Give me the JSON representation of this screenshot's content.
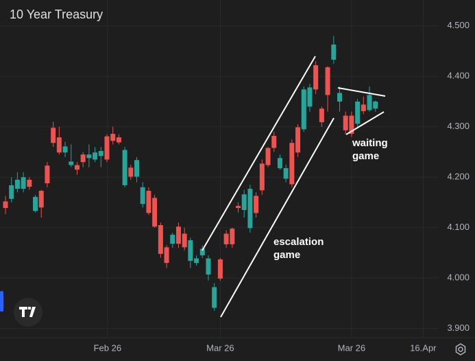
{
  "chart_data": {
    "type": "candlestick",
    "title": "10 Year Treasury",
    "up_color": "#26a69a",
    "down_color": "#ef5350",
    "grid": true,
    "ylim": [
      3.89,
      4.55
    ],
    "yticks": [
      {
        "value": 3.9,
        "label": "3.900"
      },
      {
        "value": 4.0,
        "label": "4.000"
      },
      {
        "value": 4.1,
        "label": "4.100"
      },
      {
        "value": 4.2,
        "label": "4.200"
      },
      {
        "value": 4.3,
        "label": "4.300"
      },
      {
        "value": 4.4,
        "label": "4.400"
      },
      {
        "value": 4.5,
        "label": "4.500"
      }
    ],
    "xlim": [
      -0.92,
      72.6
    ],
    "xticks": [
      {
        "value": 17.1,
        "label": "Feb 26"
      },
      {
        "value": 36,
        "label": "Mar 26"
      },
      {
        "value": 58,
        "label": "Mar 26"
      },
      {
        "value": 70,
        "label": "16.Apr"
      }
    ],
    "open": [
      4.152,
      4.157,
      4.177,
      4.177,
      4.195,
      4.133,
      4.173,
      4.223,
      4.298,
      4.279,
      4.249,
      4.224,
      4.224,
      4.245,
      4.238,
      4.235,
      4.242,
      4.281,
      4.286,
      4.279,
      4.184,
      4.219,
      4.201,
      4.147,
      4.173,
      4.159,
      4.105,
      4.061,
      4.068,
      4.102,
      4.088,
      4.034,
      4.03,
      4.045,
      4.007,
      3.941,
      4.037,
      4.088,
      4.098,
      4.143,
      4.135,
      4.099,
      4.163,
      4.227,
      4.258,
      4.282,
      4.218,
      4.197,
      4.268,
      4.299,
      4.295,
      4.34,
      4.422,
      4.336,
      4.418,
      4.433,
      4.35,
      4.322,
      4.322,
      4.306,
      4.344,
      4.333,
      4.336
    ],
    "high": [
      4.163,
      4.2,
      4.21,
      4.21,
      4.2,
      4.165,
      4.175,
      4.23,
      4.31,
      4.3,
      4.27,
      4.265,
      4.23,
      4.25,
      4.265,
      4.26,
      4.26,
      4.285,
      4.3,
      4.285,
      4.26,
      4.225,
      4.24,
      4.19,
      4.18,
      4.165,
      4.11,
      4.065,
      4.09,
      4.11,
      4.1,
      4.08,
      4.045,
      4.065,
      4.045,
      3.99,
      4.04,
      4.095,
      4.1,
      4.15,
      4.175,
      4.185,
      4.17,
      4.235,
      4.26,
      4.29,
      4.245,
      4.225,
      4.275,
      4.305,
      4.38,
      4.385,
      4.43,
      4.34,
      4.42,
      4.48,
      4.38,
      4.33,
      4.33,
      4.355,
      4.36,
      4.38,
      4.352
    ],
    "low": [
      4.127,
      4.15,
      4.17,
      4.17,
      4.175,
      4.13,
      4.12,
      4.18,
      4.26,
      4.245,
      4.24,
      4.22,
      4.205,
      4.22,
      4.22,
      4.23,
      4.22,
      4.23,
      4.265,
      4.265,
      4.18,
      4.195,
      4.19,
      4.14,
      4.125,
      4.1,
      4.04,
      4.02,
      4.06,
      4.06,
      4.055,
      4.02,
      4.025,
      4.04,
      3.995,
      3.935,
      3.995,
      4.06,
      4.06,
      4.13,
      4.12,
      4.09,
      4.12,
      4.165,
      4.22,
      4.25,
      4.215,
      4.19,
      4.18,
      4.24,
      4.29,
      4.33,
      4.365,
      4.3,
      4.33,
      4.425,
      4.33,
      4.285,
      4.28,
      4.3,
      4.325,
      4.33,
      4.33
    ],
    "close": [
      4.139,
      4.184,
      4.195,
      4.2,
      4.181,
      4.161,
      4.14,
      4.188,
      4.268,
      4.249,
      4.261,
      4.231,
      4.215,
      4.23,
      4.245,
      4.249,
      4.252,
      4.235,
      4.272,
      4.269,
      4.254,
      4.201,
      4.234,
      4.18,
      4.129,
      4.102,
      4.048,
      4.03,
      4.086,
      4.068,
      4.061,
      4.075,
      4.039,
      4.058,
      4.039,
      3.982,
      3.999,
      4.067,
      4.067,
      4.139,
      4.166,
      4.177,
      4.129,
      4.174,
      4.224,
      4.258,
      4.238,
      4.218,
      4.186,
      4.249,
      4.374,
      4.378,
      4.374,
      4.309,
      4.363,
      4.463,
      4.367,
      4.293,
      4.286,
      4.35,
      4.331,
      4.363,
      4.35
    ],
    "annotations": [
      {
        "lines": [
          "escalation",
          "game"
        ]
      },
      {
        "lines": [
          "waiting",
          "game"
        ]
      }
    ]
  }
}
